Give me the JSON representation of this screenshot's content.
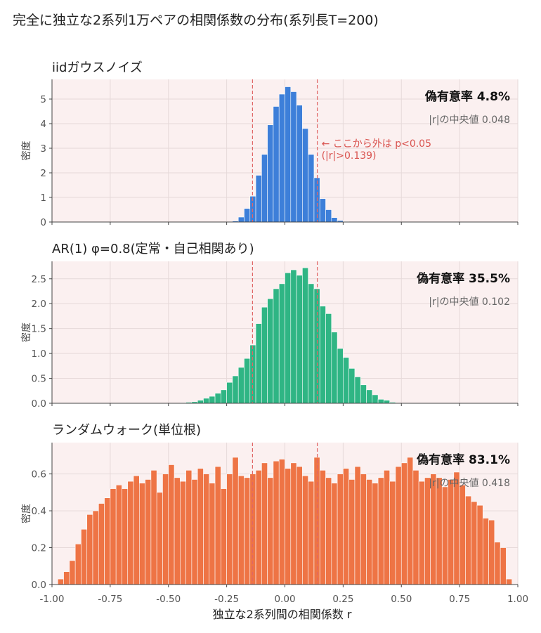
{
  "figure": {
    "title": "完全に独立な2系列1万ペアの相関係数の分布(系列長T=200)"
  },
  "chart_data": {
    "type": "bar",
    "xlabel": "独立な2系列間の相関係数 r",
    "xlim": [
      -1.0,
      1.0
    ],
    "xticks": [
      "-1.00",
      "-0.75",
      "-0.50",
      "-0.25",
      "0.00",
      "0.25",
      "0.50",
      "0.75",
      "1.00"
    ],
    "threshold": 0.139,
    "bin_width": 0.025,
    "colors": {
      "background": "#fbf0f0",
      "grid": "#e6d9d9",
      "threshold": "#e06666"
    },
    "panels": [
      {
        "title": "iidガウスノイズ",
        "ylabel": "密度",
        "ylim": [
          0,
          5.8
        ],
        "yticks": [
          "0",
          "1",
          "2",
          "3",
          "4",
          "5"
        ],
        "color": "#3d7fd9",
        "false_positive_rate": "偽有意率 4.8%",
        "median": "|r|の中央値 0.048",
        "annotation": [
          "← ここから外は p<0.05",
          "(|r|>0.139)"
        ],
        "bins_start": -0.25,
        "values": [
          0.01,
          0.04,
          0.2,
          0.55,
          1.05,
          1.9,
          2.75,
          3.95,
          4.7,
          5.2,
          5.5,
          5.3,
          4.75,
          3.8,
          2.75,
          1.8,
          0.95,
          0.5,
          0.18,
          0.06,
          0.02
        ]
      },
      {
        "title": "AR(1) φ=0.8(定常・自己相関あり)",
        "ylabel": "密度",
        "ylim": [
          0,
          2.85
        ],
        "yticks": [
          "0.0",
          "0.5",
          "1.0",
          "1.5",
          "2.0",
          "2.5"
        ],
        "color": "#2fb584",
        "false_positive_rate": "偽有意率 35.5%",
        "median": "|r|の中央値 0.102",
        "bins_start": -0.45,
        "values": [
          0.01,
          0.02,
          0.03,
          0.06,
          0.1,
          0.14,
          0.2,
          0.27,
          0.42,
          0.55,
          0.72,
          0.9,
          1.17,
          1.6,
          1.93,
          2.1,
          2.3,
          2.4,
          2.62,
          2.68,
          2.57,
          2.72,
          2.4,
          2.3,
          1.95,
          1.8,
          1.43,
          1.1,
          0.92,
          0.7,
          0.53,
          0.37,
          0.27,
          0.17,
          0.08,
          0.06,
          0.02
        ]
      },
      {
        "title": "ランダムウォーク(単位根)",
        "ylabel": "密度",
        "ylim": [
          0,
          0.77
        ],
        "yticks": [
          "0.0",
          "0.2",
          "0.4",
          "0.6"
        ],
        "color": "#ee7445",
        "false_positive_rate": "偽有意率 83.1%",
        "median": "|r|の中央値 0.418",
        "bins_start": -0.975,
        "values": [
          0.03,
          0.07,
          0.13,
          0.22,
          0.3,
          0.38,
          0.4,
          0.44,
          0.47,
          0.52,
          0.54,
          0.52,
          0.56,
          0.59,
          0.55,
          0.57,
          0.62,
          0.5,
          0.6,
          0.65,
          0.58,
          0.56,
          0.62,
          0.57,
          0.63,
          0.6,
          0.55,
          0.64,
          0.52,
          0.6,
          0.69,
          0.59,
          0.58,
          0.6,
          0.62,
          0.66,
          0.58,
          0.67,
          0.68,
          0.63,
          0.66,
          0.64,
          0.59,
          0.56,
          0.69,
          0.62,
          0.58,
          0.55,
          0.6,
          0.63,
          0.57,
          0.64,
          0.6,
          0.57,
          0.55,
          0.58,
          0.62,
          0.56,
          0.64,
          0.66,
          0.69,
          0.62,
          0.56,
          0.58,
          0.6,
          0.58,
          0.53,
          0.57,
          0.61,
          0.54,
          0.48,
          0.45,
          0.43,
          0.36,
          0.35,
          0.23,
          0.2,
          0.03
        ]
      }
    ]
  }
}
